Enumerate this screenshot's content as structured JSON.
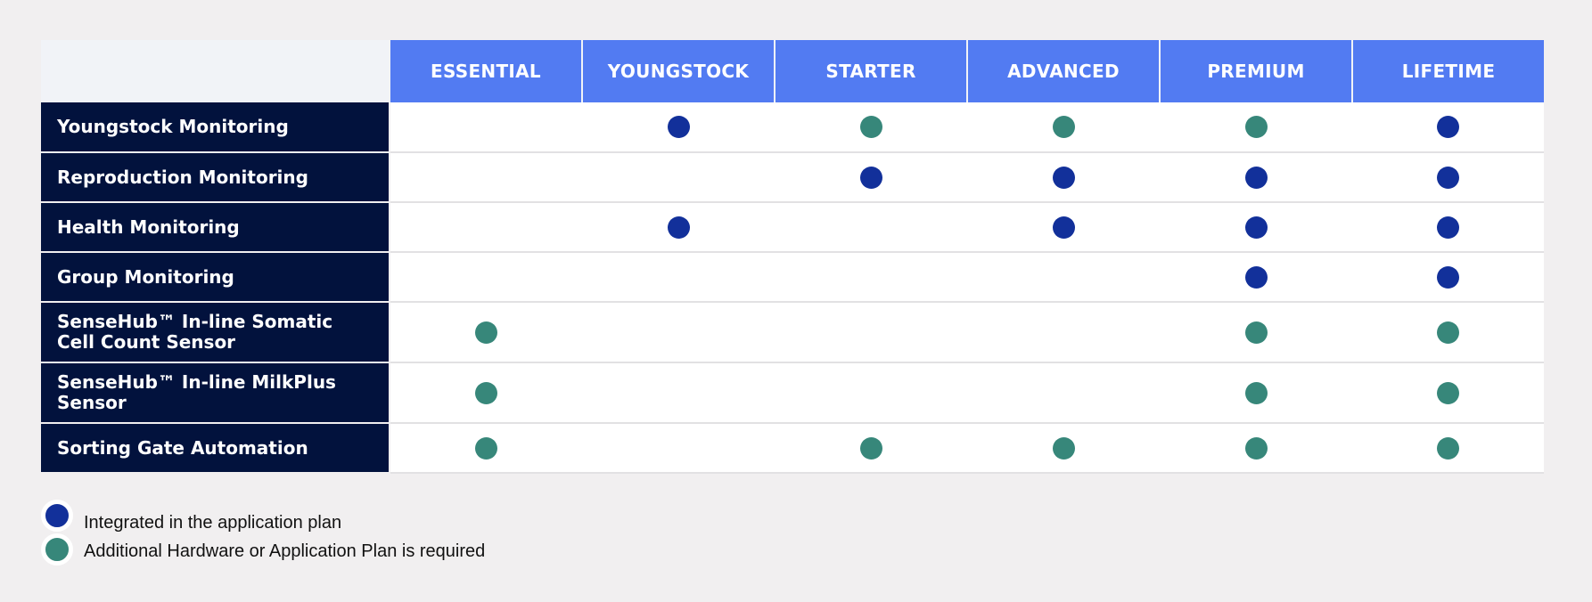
{
  "plans": [
    "ESSENTIAL",
    "YOUNGSTOCK",
    "STARTER",
    "ADVANCED",
    "PREMIUM",
    "LIFETIME"
  ],
  "features": [
    {
      "label": "Youngstock Monitoring",
      "cells": [
        "",
        "blue",
        "green",
        "green",
        "green",
        "blue"
      ]
    },
    {
      "label": "Reproduction Monitoring",
      "cells": [
        "",
        "",
        "blue",
        "blue",
        "blue",
        "blue"
      ]
    },
    {
      "label": "Health Monitoring",
      "cells": [
        "",
        "blue",
        "",
        "blue",
        "blue",
        "blue"
      ]
    },
    {
      "label": "Group Monitoring",
      "cells": [
        "",
        "",
        "",
        "",
        "blue",
        "blue"
      ]
    },
    {
      "label": "SenseHub™ In-line Somatic Cell Count Sensor",
      "cells": [
        "green",
        "",
        "",
        "",
        "green",
        "green"
      ]
    },
    {
      "label": "SenseHub™ In-line MilkPlus Sensor",
      "cells": [
        "green",
        "",
        "",
        "",
        "green",
        "green"
      ]
    },
    {
      "label": "Sorting Gate Automation",
      "cells": [
        "green",
        "",
        "green",
        "green",
        "green",
        "green"
      ]
    }
  ],
  "legend": {
    "integrated": "Integrated in the application plan",
    "additional": "Additional Hardware or Application Plan is required"
  },
  "colors": {
    "header": "#527bf2",
    "feature_bg": "#02123d",
    "integrated": "#12309a",
    "additional": "#37877a"
  }
}
